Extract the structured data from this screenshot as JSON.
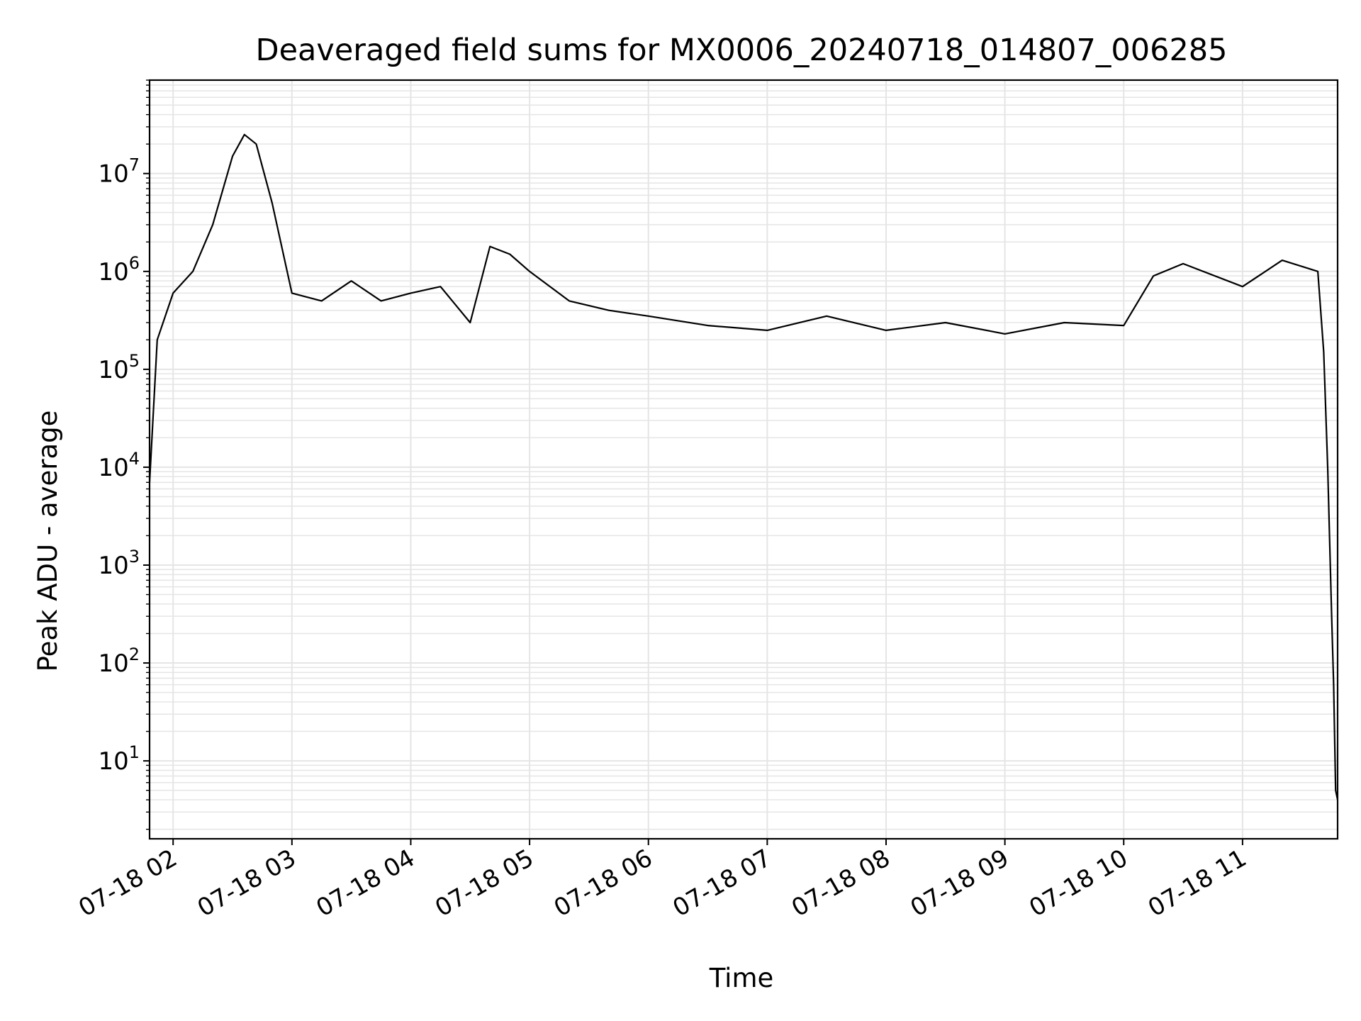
{
  "chart_data": {
    "type": "line",
    "title": "Deaveraged field sums for MX0006_20240718_014807_006285",
    "xlabel": "Time",
    "ylabel": "Peak ADU - average",
    "yscale": "log",
    "ylim": [
      1.6,
      90000000
    ],
    "xlim": [
      "2024-07-18T01:48:07",
      "2024-07-18T11:48:00"
    ],
    "grid": true,
    "line_color": "#000000",
    "grid_color": "#e5e5e5",
    "x_ticks": [
      {
        "value": "2024-07-18T02:00:00",
        "label": "07-18 02"
      },
      {
        "value": "2024-07-18T03:00:00",
        "label": "07-18 03"
      },
      {
        "value": "2024-07-18T04:00:00",
        "label": "07-18 04"
      },
      {
        "value": "2024-07-18T05:00:00",
        "label": "07-18 05"
      },
      {
        "value": "2024-07-18T06:00:00",
        "label": "07-18 06"
      },
      {
        "value": "2024-07-18T07:00:00",
        "label": "07-18 07"
      },
      {
        "value": "2024-07-18T08:00:00",
        "label": "07-18 08"
      },
      {
        "value": "2024-07-18T09:00:00",
        "label": "07-18 09"
      },
      {
        "value": "2024-07-18T10:00:00",
        "label": "07-18 10"
      },
      {
        "value": "2024-07-18T11:00:00",
        "label": "07-18 11"
      }
    ],
    "y_ticks": [
      {
        "value": 10,
        "base": "10",
        "exp": "1"
      },
      {
        "value": 100,
        "base": "10",
        "exp": "2"
      },
      {
        "value": 1000,
        "base": "10",
        "exp": "3"
      },
      {
        "value": 10000,
        "base": "10",
        "exp": "4"
      },
      {
        "value": 100000,
        "base": "10",
        "exp": "5"
      },
      {
        "value": 1000000,
        "base": "10",
        "exp": "6"
      },
      {
        "value": 10000000,
        "base": "10",
        "exp": "7"
      }
    ],
    "series": [
      {
        "x": [
          "2024-07-18T01:48:07",
          "2024-07-18T01:52:00",
          "2024-07-18T02:00:00",
          "2024-07-18T02:10:00",
          "2024-07-18T02:20:00",
          "2024-07-18T02:30:00",
          "2024-07-18T02:36:00",
          "2024-07-18T02:42:00",
          "2024-07-18T02:50:00",
          "2024-07-18T03:00:00",
          "2024-07-18T03:15:00",
          "2024-07-18T03:30:00",
          "2024-07-18T03:45:00",
          "2024-07-18T04:00:00",
          "2024-07-18T04:15:00",
          "2024-07-18T04:30:00",
          "2024-07-18T04:40:00",
          "2024-07-18T04:50:00",
          "2024-07-18T05:00:00",
          "2024-07-18T05:20:00",
          "2024-07-18T05:40:00",
          "2024-07-18T06:00:00",
          "2024-07-18T06:30:00",
          "2024-07-18T07:00:00",
          "2024-07-18T07:30:00",
          "2024-07-18T08:00:00",
          "2024-07-18T08:30:00",
          "2024-07-18T09:00:00",
          "2024-07-18T09:30:00",
          "2024-07-18T10:00:00",
          "2024-07-18T10:15:00",
          "2024-07-18T10:30:00",
          "2024-07-18T11:00:00",
          "2024-07-18T11:20:00",
          "2024-07-18T11:38:00",
          "2024-07-18T11:41:00",
          "2024-07-18T11:43:00",
          "2024-07-18T11:45:00",
          "2024-07-18T11:46:00",
          "2024-07-18T11:47:00",
          "2024-07-18T11:48:00"
        ],
        "y": [
          7000,
          200000,
          600000,
          1000000,
          3000000,
          15000000,
          25000000,
          20000000,
          5000000,
          600000,
          500000,
          800000,
          500000,
          600000,
          700000,
          300000,
          1800000,
          1500000,
          1000000,
          500000,
          400000,
          350000,
          280000,
          250000,
          350000,
          250000,
          300000,
          230000,
          300000,
          280000,
          900000,
          1200000,
          700000,
          1300000,
          1000000,
          150000,
          10000,
          300,
          60,
          5,
          4
        ]
      }
    ]
  }
}
